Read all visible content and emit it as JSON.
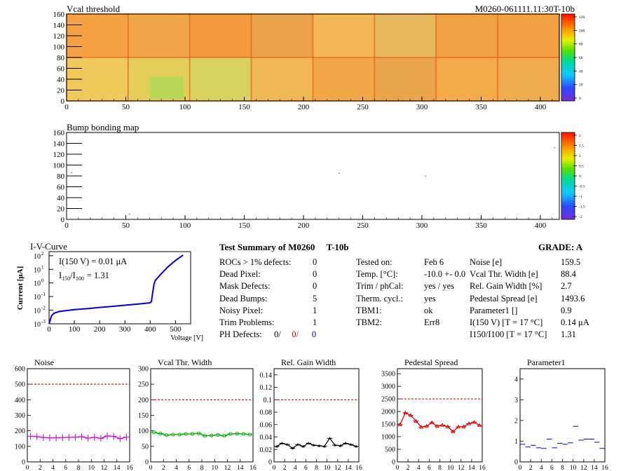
{
  "module_id": "M0260-061111.11:30T-10b",
  "vcal_map": {
    "title": "Vcal threshold",
    "x_ticks": [
      "0",
      "50",
      "100",
      "150",
      "200",
      "250",
      "300",
      "350",
      "400"
    ],
    "y_ticks": [
      "0",
      "20",
      "40",
      "60",
      "80",
      "100",
      "120",
      "140",
      "160"
    ],
    "palette_ticks": [
      "120",
      "100",
      "80",
      "60",
      "40",
      "20",
      "0"
    ]
  },
  "bump_map": {
    "title": "Bump bonding map",
    "x_ticks": [
      "0",
      "50",
      "100",
      "150",
      "200",
      "250",
      "300",
      "350",
      "400"
    ],
    "y_ticks": [
      "0",
      "20",
      "40",
      "60",
      "80",
      "100",
      "120",
      "140",
      "160"
    ],
    "palette_ticks": [
      "2",
      "1.5",
      "1",
      "0.5",
      "0",
      "-0.5",
      "-1",
      "-1.5",
      "-2"
    ],
    "points": [
      [
        4,
        86
      ],
      [
        53,
        10
      ],
      [
        230,
        85
      ],
      [
        303,
        80
      ],
      [
        412,
        132
      ]
    ]
  },
  "iv": {
    "title": "I-V-Curve",
    "ylabel": "Current [μA]",
    "xlabel": "Voltage [V]",
    "x_ticks": [
      "0",
      "100",
      "200",
      "300",
      "400",
      "500"
    ],
    "y_ticks": [
      "10",
      "10",
      "10",
      "10",
      "10",
      "10"
    ],
    "y_exps": [
      "-3",
      "-2",
      "-1",
      "0",
      "1",
      "2"
    ],
    "i150": "I(150 V) = 0.01 μA",
    "ratio_label": "I",
    "ratio_sub1": "150",
    "ratio_sub2": "100",
    "ratio_value": "=  1.31"
  },
  "summary": {
    "heading": "Test Summary of M0260",
    "tag": "T-10b",
    "grade": "GRADE:  A",
    "left_labels": [
      "ROCs > 1% defects:",
      "Dead Pixel:",
      "Mask Defects:",
      "Dead Bumps:",
      "Noisy Pixel:",
      "Trim Problems:",
      "PH Defects:"
    ],
    "left_values": [
      "0",
      "0",
      "0",
      "5",
      "1",
      "1"
    ],
    "ph_values": [
      "0/",
      "0/",
      "0"
    ],
    "mid_labels": [
      "Tested on:",
      "Temp. [°C]:",
      "Trim / phCal:",
      "Therm. cycl.:",
      "TBM1:",
      "TBM2:"
    ],
    "mid_values": [
      "Feb 6",
      "-10.0 +- 0.0",
      "yes / yes",
      "yes",
      "ok",
      "Err8"
    ],
    "right_labels": [
      "Noise [e]",
      "Vcal Thr. Width [e]",
      "Rel. Gain Width [%]",
      "Pedestal Spread [e]",
      "Parameter1 []",
      "I(150 V) [T = 17 °C]",
      "I150/I100  [T = 17 °C]"
    ],
    "right_values": [
      "159.5",
      "88.4",
      "2.7",
      "1493.6",
      "0.9",
      "0.14 μA",
      "1.31"
    ]
  },
  "chart_data": [
    {
      "type": "heatmap",
      "title": "Vcal threshold",
      "xlim": [
        0,
        416
      ],
      "ylim": [
        0,
        160
      ],
      "zlim": [
        0,
        130
      ],
      "note_blocks": "16 ROC blocks of 52x80 pixels; top row warmer (orange/red), bottom row mixed yellow/green"
    },
    {
      "type": "scatter",
      "title": "Bump bonding map",
      "xlim": [
        0,
        416
      ],
      "ylim": [
        0,
        160
      ],
      "zlim": [
        -2,
        2
      ],
      "x": [
        4,
        53,
        230,
        303,
        412
      ],
      "y": [
        86,
        10,
        85,
        80,
        132
      ]
    },
    {
      "type": "line",
      "title": "I-V-Curve",
      "xlabel": "Voltage [V]",
      "ylabel": "Current [μA]",
      "xlim": [
        0,
        560
      ],
      "ylim": [
        0.001,
        100
      ],
      "log_y": true,
      "x": [
        0,
        5,
        10,
        20,
        40,
        60,
        100,
        150,
        200,
        250,
        300,
        350,
        400,
        405,
        410,
        415,
        420,
        440,
        470,
        500,
        530
      ],
      "y": [
        0.001,
        0.002,
        0.004,
        0.006,
        0.008,
        0.009,
        0.011,
        0.013,
        0.016,
        0.019,
        0.023,
        0.028,
        0.035,
        0.045,
        0.2,
        0.8,
        1.5,
        4,
        15,
        45,
        110
      ]
    },
    {
      "type": "line",
      "title": "Noise",
      "x": [
        0,
        1,
        2,
        3,
        4,
        5,
        6,
        7,
        8,
        9,
        10,
        11,
        12,
        13,
        14,
        15
      ],
      "values": [
        165,
        162,
        157,
        155,
        155,
        157,
        158,
        159,
        162,
        153,
        158,
        152,
        167,
        164,
        150,
        159
      ],
      "limit": 500,
      "ylim": [
        0,
        600
      ],
      "yticks": [
        "0",
        "100",
        "200",
        "300",
        "400",
        "500",
        "600"
      ],
      "color": "#cc00cc"
    },
    {
      "type": "line",
      "title": "Vcal Thr. Width",
      "x": [
        0,
        1,
        2,
        3,
        4,
        5,
        6,
        7,
        8,
        9,
        10,
        11,
        12,
        13,
        14,
        15
      ],
      "values": [
        95,
        91,
        86,
        88,
        88,
        90,
        90,
        92,
        84,
        85,
        87,
        84,
        90,
        91,
        90,
        88
      ],
      "limit": 200,
      "ylim": [
        0,
        300
      ],
      "yticks": [
        "0",
        "50",
        "100",
        "150",
        "200",
        "250",
        "300"
      ],
      "color": "#00aa00"
    },
    {
      "type": "line",
      "title": "Rel. Gain Width",
      "x": [
        0,
        1,
        2,
        3,
        4,
        5,
        6,
        7,
        8,
        9,
        10,
        11,
        12,
        13,
        14,
        15
      ],
      "values": [
        0.025,
        0.03,
        0.028,
        0.022,
        0.028,
        0.025,
        0.03,
        0.027,
        0.026,
        0.025,
        0.038,
        0.027,
        0.026,
        0.03,
        0.028,
        0.025
      ],
      "limit": 0.1,
      "ylim": [
        0,
        0.15
      ],
      "yticks": [
        "0",
        "0.02",
        "0.04",
        "0.06",
        "0.08",
        "0.1",
        "0.12",
        "0.14"
      ],
      "color": "#000000"
    },
    {
      "type": "line",
      "title": "Pedestal Spread",
      "x": [
        0,
        1,
        2,
        3,
        4,
        5,
        6,
        7,
        8,
        9,
        10,
        11,
        12,
        13,
        14,
        15
      ],
      "values": [
        1480,
        1950,
        1850,
        1620,
        1380,
        1420,
        1560,
        1420,
        1460,
        1400,
        1200,
        1390,
        1400,
        1520,
        1580,
        1450
      ],
      "limit": 2500,
      "ylim": [
        0,
        3700
      ],
      "yticks": [
        "0",
        "500",
        "1000",
        "1500",
        "2000",
        "2500",
        "3000",
        "3500"
      ],
      "color": "#dd0000"
    },
    {
      "type": "line",
      "title": "Parameter1",
      "x": [
        0,
        1,
        2,
        3,
        4,
        5,
        6,
        7,
        8,
        9,
        10,
        11,
        12,
        13,
        14,
        15
      ],
      "values": [
        0.85,
        0.72,
        0.8,
        0.68,
        0.65,
        1.1,
        0.68,
        0.9,
        0.85,
        0.92,
        1.72,
        1.05,
        1.1,
        1.1,
        0.95,
        0.65
      ],
      "limit": null,
      "ylim": [
        0,
        4.5
      ],
      "yticks": [
        "0",
        "1",
        "2",
        "3",
        "4"
      ],
      "color": "#0000dd"
    }
  ]
}
